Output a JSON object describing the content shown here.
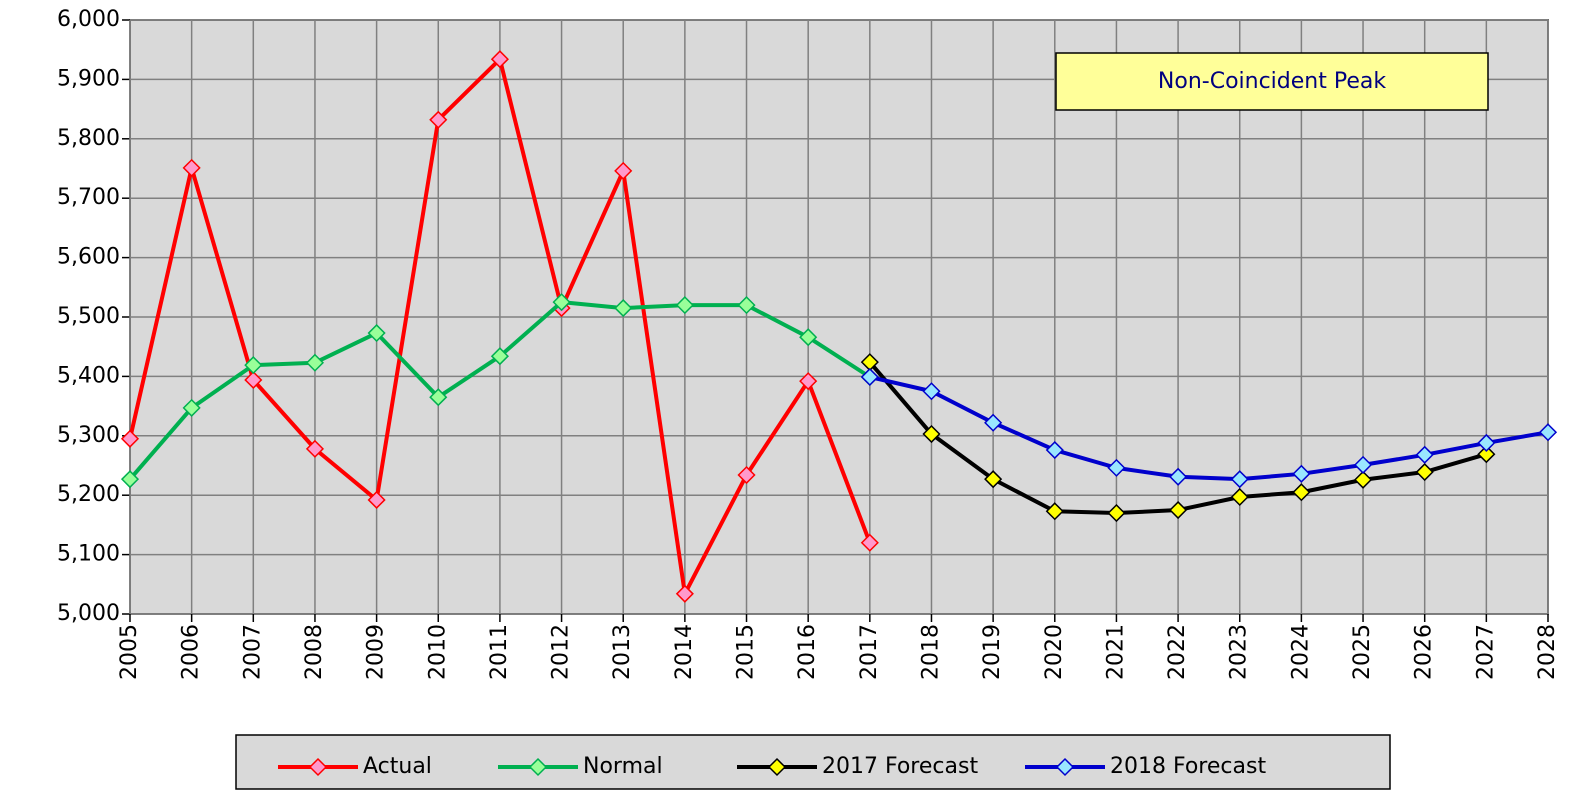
{
  "chart_data": {
    "type": "line",
    "annotation": "Non-Coincident Peak",
    "categories": [
      "2005",
      "2006",
      "2007",
      "2008",
      "2009",
      "2010",
      "2011",
      "2012",
      "2013",
      "2014",
      "2015",
      "2016",
      "2017",
      "2018",
      "2019",
      "2020",
      "2021",
      "2022",
      "2023",
      "2024",
      "2025",
      "2026",
      "2027",
      "2028"
    ],
    "series": [
      {
        "name": "Actual",
        "color": "#ff0000",
        "marker_color": "#ff99cc",
        "values": [
          5295,
          5751,
          5394,
          5278,
          5192,
          5832,
          5934,
          5515,
          5746,
          5034,
          5234,
          5392,
          5120,
          null,
          null,
          null,
          null,
          null,
          null,
          null,
          null,
          null,
          null,
          null
        ]
      },
      {
        "name": "Normal",
        "color": "#00b050",
        "marker_color": "#99ff99",
        "values": [
          5227,
          5347,
          5419,
          5423,
          5473,
          5365,
          5434,
          5525,
          5515,
          5520,
          5520,
          5466,
          5399,
          null,
          null,
          null,
          null,
          null,
          null,
          null,
          null,
          null,
          null,
          null
        ]
      },
      {
        "name": "2017 Forecast",
        "color": "#000000",
        "marker_color": "#ffff00",
        "values": [
          null,
          null,
          null,
          null,
          null,
          null,
          null,
          null,
          null,
          null,
          null,
          null,
          5424,
          5303,
          5227,
          5173,
          5170,
          5175,
          5197,
          5205,
          5226,
          5239,
          5269,
          null
        ]
      },
      {
        "name": "2018 Forecast",
        "color": "#0000cc",
        "marker_color": "#99e6ff",
        "values": [
          null,
          null,
          null,
          null,
          null,
          null,
          null,
          null,
          null,
          null,
          null,
          null,
          5399,
          5375,
          5322,
          5276,
          5246,
          5231,
          5227,
          5236,
          5251,
          5268,
          5288,
          5306
        ]
      }
    ],
    "ylim": [
      5000,
      6000
    ],
    "yticks": [
      {
        "value": 5000,
        "label": "5,000"
      },
      {
        "value": 5100,
        "label": "5,100"
      },
      {
        "value": 5200,
        "label": "5,200"
      },
      {
        "value": 5300,
        "label": "5,300"
      },
      {
        "value": 5400,
        "label": "5,400"
      },
      {
        "value": 5500,
        "label": "5,500"
      },
      {
        "value": 5600,
        "label": "5,600"
      },
      {
        "value": 5700,
        "label": "5,700"
      },
      {
        "value": 5800,
        "label": "5,800"
      },
      {
        "value": 5900,
        "label": "5,900"
      },
      {
        "value": 6000,
        "label": "6,000"
      }
    ],
    "grid": true,
    "legend": "bottom"
  }
}
